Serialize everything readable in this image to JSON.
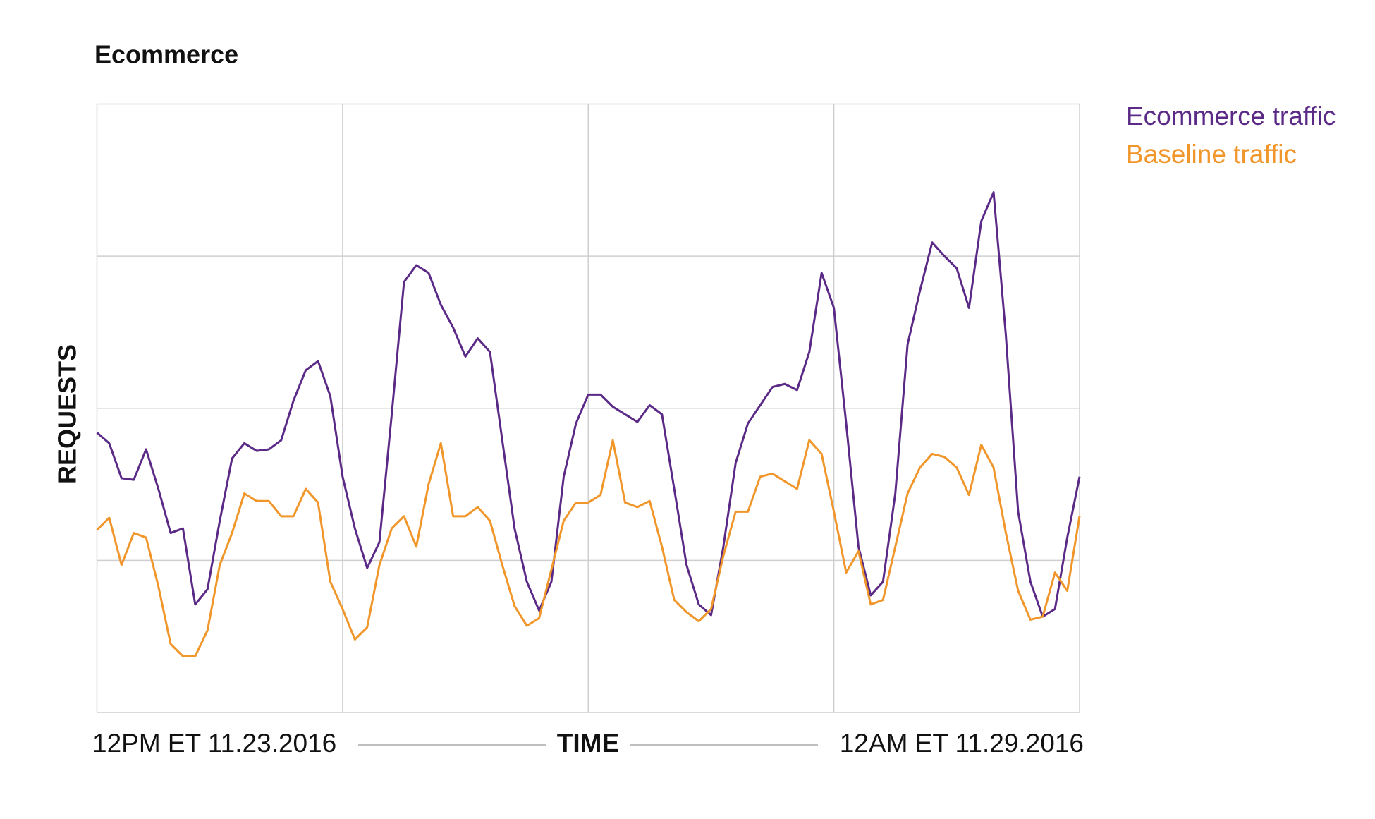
{
  "chart_data": {
    "type": "line",
    "title": "Ecommerce",
    "y_label": "REQUESTS",
    "x_label": "TIME",
    "x_start_label": "12PM ET 11.23.2016",
    "x_end_label": "12AM ET 11.29.2016",
    "xlim": [
      0,
      80
    ],
    "xticks": [
      0,
      20,
      40,
      60,
      80
    ],
    "ylim": [
      0,
      4
    ],
    "yticks": [
      0,
      1,
      2,
      3,
      4
    ],
    "grid": true,
    "legend": "top-right",
    "series": [
      {
        "name": "Ecommerce traffic",
        "color": "#5b2a86",
        "values": [
          1.84,
          1.77,
          1.54,
          1.53,
          1.73,
          1.47,
          1.18,
          1.21,
          0.71,
          0.81,
          1.26,
          1.67,
          1.77,
          1.72,
          1.73,
          1.79,
          2.05,
          2.25,
          2.31,
          2.08,
          1.55,
          1.21,
          0.95,
          1.12,
          1.96,
          2.83,
          2.94,
          2.89,
          2.68,
          2.53,
          2.34,
          2.46,
          2.37,
          1.79,
          1.21,
          0.86,
          0.67,
          0.86,
          1.55,
          1.9,
          2.09,
          2.09,
          2.01,
          1.96,
          1.91,
          2.02,
          1.96,
          1.47,
          0.97,
          0.71,
          0.64,
          1.09,
          1.64,
          1.9,
          2.02,
          2.14,
          2.16,
          2.12,
          2.37,
          2.89,
          2.66,
          1.9,
          1.09,
          0.77,
          0.86,
          1.44,
          2.42,
          2.77,
          3.09,
          3.0,
          2.92,
          2.66,
          3.23,
          3.42,
          2.48,
          1.32,
          0.86,
          0.63,
          0.68,
          1.15,
          1.55
        ]
      },
      {
        "name": "Baseline traffic",
        "color": "#f0962a",
        "values": [
          1.2,
          1.28,
          0.97,
          1.18,
          1.15,
          0.83,
          0.45,
          0.37,
          0.37,
          0.54,
          0.97,
          1.18,
          1.44,
          1.39,
          1.39,
          1.29,
          1.29,
          1.47,
          1.38,
          0.86,
          0.68,
          0.48,
          0.56,
          0.97,
          1.21,
          1.29,
          1.09,
          1.5,
          1.77,
          1.29,
          1.29,
          1.35,
          1.26,
          0.97,
          0.7,
          0.57,
          0.62,
          0.94,
          1.26,
          1.38,
          1.38,
          1.43,
          1.79,
          1.38,
          1.35,
          1.39,
          1.09,
          0.74,
          0.66,
          0.6,
          0.68,
          1.03,
          1.32,
          1.32,
          1.55,
          1.57,
          1.52,
          1.47,
          1.79,
          1.7,
          1.32,
          0.92,
          1.06,
          0.71,
          0.74,
          1.09,
          1.44,
          1.61,
          1.7,
          1.68,
          1.61,
          1.43,
          1.76,
          1.61,
          1.18,
          0.8,
          0.61,
          0.63,
          0.92,
          0.8,
          1.29
        ]
      }
    ]
  }
}
